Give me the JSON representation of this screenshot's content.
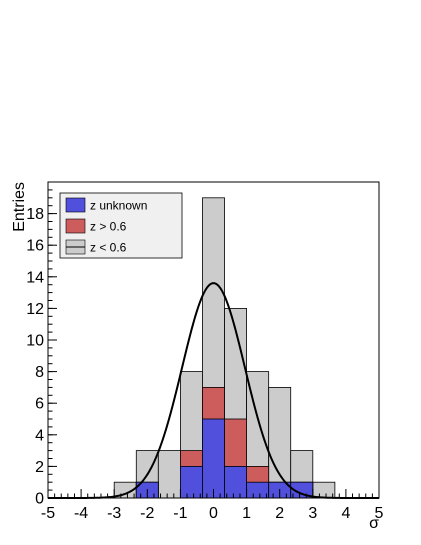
{
  "chart_data": {
    "type": "bar",
    "xlabel": "σ",
    "ylabel": "Entries",
    "xlim": [
      -5,
      5
    ],
    "ylim": [
      0,
      20
    ],
    "xticks": [
      "-5",
      "-4",
      "-3",
      "-2",
      "-1",
      "0",
      "1",
      "2",
      "3",
      "4",
      "5"
    ],
    "yticks": [
      "0",
      "2",
      "4",
      "6",
      "8",
      "10",
      "12",
      "14",
      "16",
      "18"
    ],
    "bin_edges": [
      -5,
      -4.333,
      -3.667,
      -3,
      -2.333,
      -1.667,
      -1,
      -0.333,
      0.333,
      1,
      1.667,
      2.333,
      3,
      3.667,
      4.333,
      5
    ],
    "series": [
      {
        "name": "z < 0.6",
        "style": "histogram",
        "color": "#cccccc",
        "values": [
          0,
          0,
          0,
          1,
          3,
          3,
          8,
          19,
          12,
          8,
          7,
          3,
          1,
          0,
          0
        ]
      },
      {
        "name": "z > 0.6",
        "style": "histogram",
        "color": "#cd5c5c",
        "values": [
          0,
          0,
          0,
          0,
          1,
          0,
          3,
          7,
          5,
          2,
          1,
          1,
          0,
          0,
          0
        ]
      },
      {
        "name": "z unknown",
        "style": "histogram",
        "color": "#5050dc",
        "values": [
          0,
          0,
          0,
          0,
          1,
          0,
          2,
          5,
          2,
          1,
          1,
          1,
          0,
          0,
          0
        ]
      },
      {
        "name": "",
        "style": "curve",
        "color": "#000000",
        "function": "gaussian",
        "amplitude": 13.6,
        "mean": 0.0,
        "sigma": 0.95
      }
    ],
    "legend": {
      "placement": "top-left",
      "entries": [
        {
          "label": "z unknown",
          "color": "#5050dc",
          "kind": "box"
        },
        {
          "label": "z > 0.6",
          "color": "#cd5c5c",
          "kind": "box"
        },
        {
          "label": "z < 0.6",
          "color": "#cccccc",
          "kind": "box-with-line"
        }
      ]
    },
    "grid": false
  }
}
